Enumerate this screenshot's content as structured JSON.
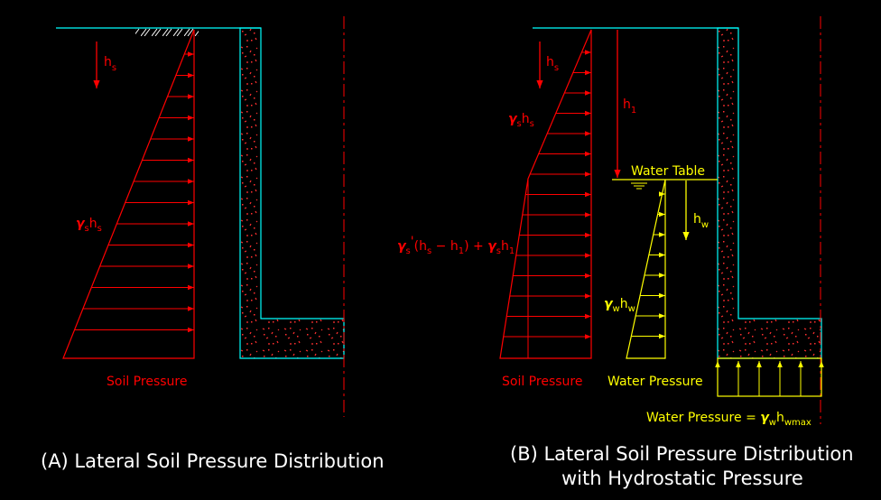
{
  "diagram_a": {
    "title": "(A) Lateral Soil Pressure Distribution",
    "depth_label": {
      "base": "h",
      "sub": "s"
    },
    "pressure_expr": {
      "sym": "γ",
      "sub1": "s",
      "base": "h",
      "sub2": "s"
    },
    "pressure_label": "Soil Pressure"
  },
  "diagram_b": {
    "title_line1": "(B) Lateral Soil Pressure Distribution",
    "title_line2": "with Hydrostatic Pressure",
    "depth_label": {
      "base": "h",
      "sub": "s"
    },
    "h1_label": {
      "base": "h",
      "sub": "1"
    },
    "upper_expr": {
      "sym": "γ",
      "sub1": "s",
      "base": "h",
      "sub2": "s"
    },
    "water_table_label": "Water Table",
    "hw_label": {
      "base": "h",
      "sub": "w"
    },
    "combined_expr": {
      "sym1": "γ",
      "sub1": "s",
      "prime": "'",
      "open": "(h",
      "sub2": "s",
      "minus": " −  h",
      "sub3": "1",
      "close": ")  + ",
      "sym2": "γ",
      "sub4": "s",
      "h": "h",
      "sub5": "1"
    },
    "water_expr": {
      "sym": "γ",
      "sub1": "w",
      "base": "h",
      "sub2": "w"
    },
    "soil_label": "Soil Pressure",
    "water_label": "Water Pressure",
    "uplift_label": {
      "text": "Water Pressure = ",
      "sym": "γ",
      "sub1": "w",
      "base": "h",
      "sub2": "wmax"
    }
  }
}
